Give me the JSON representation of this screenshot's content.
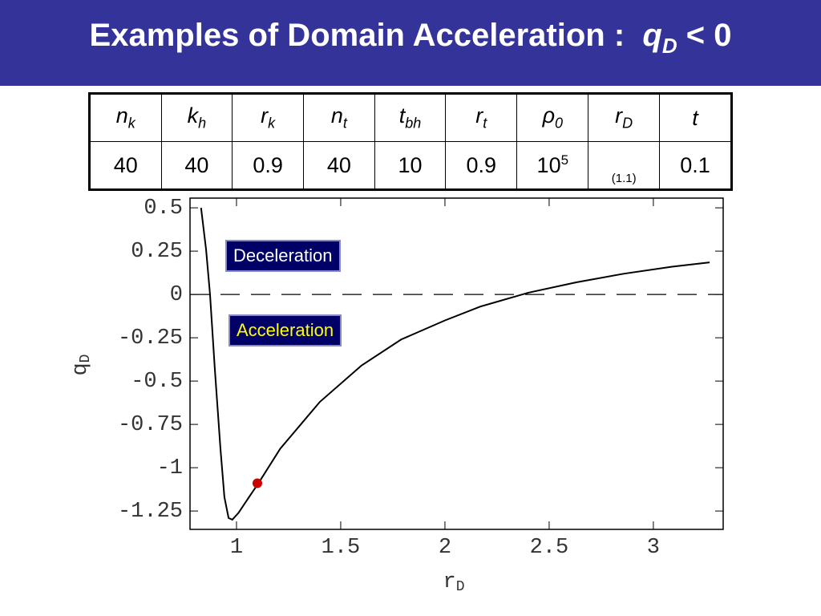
{
  "header": {
    "title": "Examples of Domain Acceleration :",
    "symbol": {
      "text": "q",
      "sub": "D"
    },
    "relation": "< 0"
  },
  "table": {
    "header": [
      {
        "text": "n",
        "sub": "k"
      },
      {
        "text": "k",
        "sub": "h"
      },
      {
        "text": "r",
        "sub": "k"
      },
      {
        "text": "n",
        "sub": "t"
      },
      {
        "text": "t",
        "sub": "bh"
      },
      {
        "text": "r",
        "sub": "t"
      },
      {
        "text": "ρ",
        "sub": "0"
      },
      {
        "text": "r",
        "sub": "D"
      },
      {
        "text": "t"
      }
    ],
    "rows": [
      [
        {
          "text": "40"
        },
        {
          "text": "40"
        },
        {
          "text": "0.9"
        },
        {
          "text": "40"
        },
        {
          "text": "10"
        },
        {
          "text": "0.9"
        },
        {
          "text": "10",
          "sup": "5"
        },
        {
          "text": "(1.1)"
        },
        {
          "text": "0.1"
        }
      ]
    ]
  },
  "chart_data": {
    "type": "line",
    "xlabel": {
      "text": "r",
      "sub": "D"
    },
    "ylabel": {
      "text": "q",
      "sub": "D"
    },
    "x": [
      0.83,
      0.854,
      0.873,
      0.896,
      0.923,
      0.942,
      0.962,
      0.98,
      1.01,
      1.06,
      1.105,
      1.21,
      1.4,
      1.6,
      1.79,
      2.0,
      2.17,
      2.4,
      2.63,
      2.86,
      3.09,
      3.27
    ],
    "series": [
      {
        "color": "#000000",
        "values": [
          0.5,
          0.26,
          0.0,
          -0.43,
          -0.89,
          -1.17,
          -1.29,
          -1.3,
          -1.26,
          -1.17,
          -1.09,
          -0.89,
          -0.62,
          -0.41,
          -0.26,
          -0.15,
          -0.07,
          0.01,
          0.07,
          0.12,
          0.16,
          0.185
        ]
      }
    ],
    "highlight": {
      "x": 1.1,
      "y": -1.09,
      "color": "#cc0000"
    },
    "reference_line": {
      "y": 0,
      "dashed": true
    },
    "annotations": [
      {
        "text": "Deceleration",
        "color": "#ffffff",
        "background": "#000066"
      },
      {
        "text": "Acceleration",
        "color": "#ffff00",
        "background": "#000066"
      }
    ],
    "xlim": [
      0.777,
      3.335
    ],
    "ylim": [
      -1.356,
      0.556
    ],
    "xticks": [
      1,
      1.5,
      2,
      2.5,
      3
    ],
    "yticks": [
      0.5,
      0.25,
      0,
      -0.25,
      -0.5,
      -0.75,
      -1,
      -1.25
    ]
  }
}
